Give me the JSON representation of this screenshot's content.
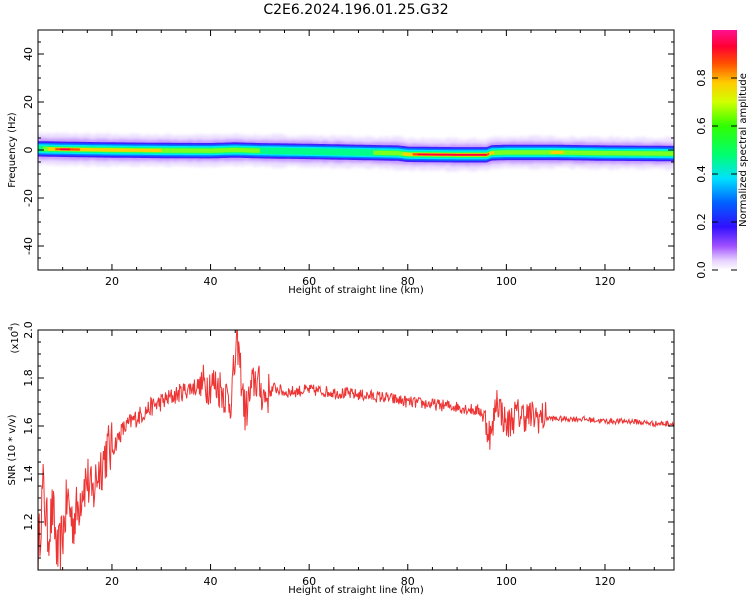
{
  "title": "C2E6.2024.196.01.25.G32",
  "chart_data": [
    {
      "type": "heatmap",
      "xlabel": "Height of straight line (km)",
      "ylabel": "Frequency (Hz)",
      "xlim": [
        5,
        134
      ],
      "ylim": [
        -50,
        50
      ],
      "xticks": [
        20,
        40,
        60,
        80,
        100,
        120
      ],
      "yticks": [
        -40,
        -20,
        0,
        20,
        40
      ],
      "colorbar": {
        "label": "Normalized spectral amplitude",
        "range": [
          0,
          1
        ],
        "ticks": [
          "0.0",
          "0.2",
          "0.4",
          "0.6",
          "0.8"
        ]
      },
      "ridge_center_hz": {
        "x": [
          5,
          10,
          20,
          30,
          40,
          45,
          50,
          60,
          70,
          78,
          80,
          90,
          96,
          97,
          100,
          110,
          120,
          134
        ],
        "y": [
          0.5,
          0.3,
          0.0,
          -0.2,
          -0.3,
          0.0,
          -0.3,
          -0.6,
          -1.0,
          -1.3,
          -1.8,
          -2.0,
          -2.0,
          -1.2,
          -1.0,
          -1.0,
          -1.3,
          -1.5
        ]
      },
      "ridge_peak_amplitude": {
        "x": [
          5,
          7,
          10,
          13,
          15,
          20,
          30,
          40,
          50,
          60,
          70,
          78,
          82,
          90,
          96,
          98,
          105,
          110,
          120,
          134
        ],
        "y": [
          0.35,
          0.75,
          0.98,
          0.9,
          0.7,
          0.72,
          0.68,
          0.6,
          0.55,
          0.5,
          0.52,
          0.6,
          0.97,
          0.99,
          0.97,
          0.6,
          0.62,
          0.7,
          0.6,
          0.55
        ]
      }
    },
    {
      "type": "line",
      "xlabel": "Height of straight line (km)",
      "ylabel": "SNR (10 * v/v)",
      "multiplier": "(x10",
      "multiplier_exp": "4",
      "multiplier_close": ")",
      "xlim": [
        5,
        134
      ],
      "ylim": [
        1.0,
        2.0
      ],
      "xticks": [
        20,
        40,
        60,
        80,
        100,
        120
      ],
      "yticks": [
        1.2,
        1.4,
        1.6,
        1.8,
        2.0
      ],
      "series": [
        {
          "color": "#ee3333",
          "x": [
            5,
            6,
            7,
            8,
            9,
            10,
            11,
            12,
            13,
            14,
            15,
            16,
            17,
            18,
            19,
            20,
            22,
            24,
            26,
            28,
            30,
            32,
            34,
            36,
            38,
            40,
            42,
            44,
            45.5,
            47,
            49,
            51,
            53,
            55,
            60,
            65,
            70,
            75,
            80,
            85,
            90,
            95,
            97,
            98,
            100,
            102,
            105,
            110,
            115,
            120,
            125,
            130,
            134
          ],
          "y": [
            1.05,
            1.35,
            1.15,
            1.25,
            1.05,
            1.15,
            1.3,
            1.2,
            1.25,
            1.35,
            1.38,
            1.3,
            1.4,
            1.45,
            1.5,
            1.5,
            1.58,
            1.62,
            1.65,
            1.68,
            1.7,
            1.72,
            1.74,
            1.76,
            1.77,
            1.78,
            1.76,
            1.7,
            1.95,
            1.65,
            1.8,
            1.72,
            1.76,
            1.74,
            1.75,
            1.74,
            1.73,
            1.72,
            1.7,
            1.69,
            1.68,
            1.66,
            1.55,
            1.72,
            1.6,
            1.65,
            1.64,
            1.63,
            1.63,
            1.62,
            1.62,
            1.61,
            1.61
          ]
        }
      ]
    }
  ]
}
